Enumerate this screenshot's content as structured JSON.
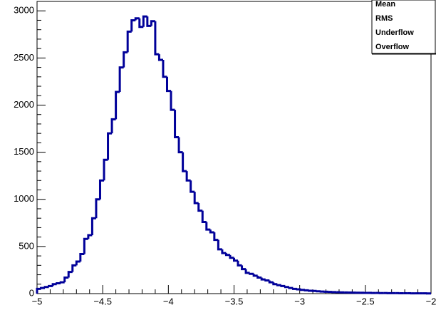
{
  "chart_data": {
    "type": "histogram",
    "bins": [
      -5,
      -4.97,
      -4.94,
      -4.91,
      -4.88,
      -4.85,
      -4.82,
      -4.79,
      -4.76,
      -4.73,
      -4.7,
      -4.67,
      -4.64,
      -4.61,
      -4.58,
      -4.55,
      -4.52,
      -4.49,
      -4.46,
      -4.43,
      -4.4,
      -4.37,
      -4.34,
      -4.31,
      -4.28,
      -4.25,
      -4.22,
      -4.19,
      -4.16,
      -4.13,
      -4.1,
      -4.07,
      -4.04,
      -4.01,
      -3.98,
      -3.95,
      -3.92,
      -3.89,
      -3.86,
      -3.83,
      -3.8,
      -3.77,
      -3.74,
      -3.71,
      -3.68,
      -3.65,
      -3.62,
      -3.59,
      -3.56,
      -3.53,
      -3.5,
      -3.47,
      -3.44,
      -3.41,
      -3.38,
      -3.35,
      -3.32,
      -3.29,
      -3.26,
      -3.23,
      -3.2,
      -3.17,
      -3.14,
      -3.11,
      -3.08,
      -3.05,
      -3.02,
      -2.99,
      -2.96,
      -2.93,
      -2.9,
      -2.87,
      -2.84,
      -2.81,
      -2.78,
      -2.75,
      -2.72,
      -2.69,
      -2.66,
      -2.63,
      -2.6,
      -2.57,
      -2.54,
      -2.51,
      -2.48,
      -2.45,
      -2.42,
      -2.39,
      -2.36,
      -2.33,
      -2.3,
      -2.27,
      -2.24,
      -2.21,
      -2.18,
      -2.15,
      -2.12,
      -2.09,
      -2.06,
      -2.03,
      -2
    ],
    "values": [
      50,
      60,
      70,
      80,
      100,
      110,
      120,
      170,
      230,
      300,
      340,
      420,
      580,
      620,
      800,
      1000,
      1200,
      1420,
      1700,
      1850,
      2140,
      2400,
      2560,
      2780,
      2900,
      2920,
      2830,
      2940,
      2840,
      2890,
      2540,
      2480,
      2300,
      2150,
      1950,
      1660,
      1500,
      1300,
      1200,
      1080,
      960,
      880,
      760,
      680,
      650,
      570,
      470,
      430,
      410,
      380,
      350,
      300,
      260,
      220,
      210,
      190,
      170,
      150,
      140,
      120,
      100,
      90,
      80,
      70,
      60,
      50,
      45,
      40,
      35,
      30,
      28,
      25,
      22,
      20,
      18,
      16,
      15,
      13,
      12,
      11,
      10,
      9,
      9,
      8,
      8,
      7,
      7,
      6,
      6,
      5,
      5,
      5,
      4,
      4,
      4,
      3,
      3,
      3,
      3,
      2
    ],
    "color": "#000099",
    "xlim": [
      -5,
      -2
    ],
    "xticks": [
      {
        "value": -5,
        "label": "−5"
      },
      {
        "value": -4.5,
        "label": "−4.5"
      },
      {
        "value": -4,
        "label": "−4"
      },
      {
        "value": -3.5,
        "label": "−3.5"
      },
      {
        "value": -3,
        "label": "−3"
      },
      {
        "value": -2.5,
        "label": "−2.5"
      },
      {
        "value": -2,
        "label": "−2"
      }
    ],
    "ylim": [
      0,
      3100
    ],
    "yticks": [
      0,
      500,
      1000,
      1500,
      2000,
      2500,
      3000
    ],
    "stats_box": [
      "Mean",
      "RMS",
      "Underflow",
      "Overflow"
    ]
  }
}
